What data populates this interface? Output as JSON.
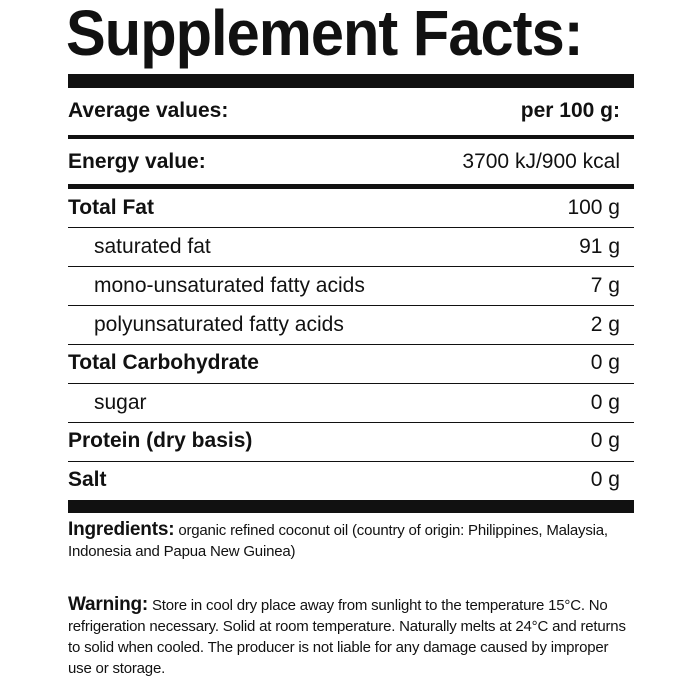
{
  "title": "Supplement Facts:",
  "header": {
    "label": "Average values:",
    "value": "per 100 g:"
  },
  "rows": [
    {
      "label": "Energy value:",
      "value": "3700 kJ/900 kcal"
    },
    {
      "label": "Total Fat",
      "value": "100 g"
    },
    {
      "label": "saturated fat",
      "value": "91 g"
    },
    {
      "label": "mono-unsaturated fatty acids",
      "value": "7 g"
    },
    {
      "label": "polyunsaturated fatty acids",
      "value": "2 g"
    },
    {
      "label": "Total Carbohydrate",
      "value": "0 g"
    },
    {
      "label": "sugar",
      "value": "0 g"
    },
    {
      "label": "Protein (dry basis)",
      "value": "0 g"
    },
    {
      "label": "Salt",
      "value": "0 g"
    }
  ],
  "ingredients": {
    "label": "Ingredients:",
    "text": "organic refined coconut oil (country of origin: Philippines, Malaysia, Indonesia and Papua New Guinea)"
  },
  "warning": {
    "label": "Warning:",
    "text": "Store in cool dry place away from sunlight to the temperature 15°C. No refrigeration necessary. Solid at room temperature. Naturally melts at 24°C and returns to solid when cooled. The producer is not liable for any damage caused by improper use or storage."
  }
}
